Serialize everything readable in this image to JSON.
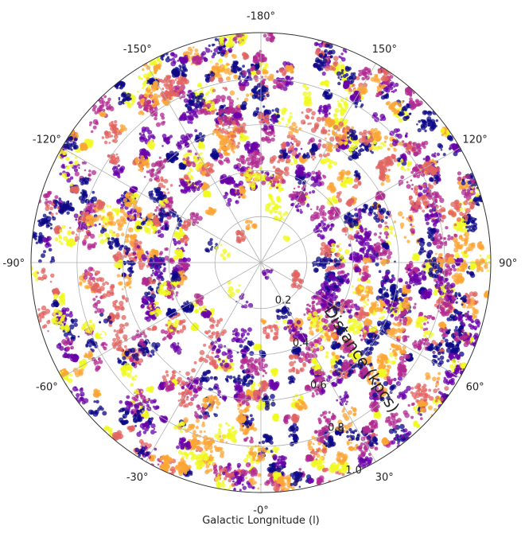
{
  "chart_data": {
    "type": "scatter",
    "projection": "polar",
    "xlabel": "Galactic Longnitude (l)",
    "rlabel": "Distance (kpcs)",
    "theta_zero": "bottom",
    "theta_direction": "counterclockwise",
    "theta_ticks": [
      "-0°",
      "30°",
      "60°",
      "90°",
      "120°",
      "150°",
      "-180°",
      "-150°",
      "-120°",
      "-90°",
      "-60°",
      "-30°"
    ],
    "theta_tick_values": [
      0,
      30,
      60,
      90,
      120,
      150,
      180,
      -150,
      -120,
      -90,
      -60,
      -30
    ],
    "r_ticks": [
      "0.2",
      "0.4",
      "0.6",
      "0.8",
      "1.0"
    ],
    "r_tick_values": [
      0.2,
      0.4,
      0.6,
      0.8,
      1.0
    ],
    "rlim": [
      0,
      1.0
    ],
    "grid": true,
    "colormap": "plasma",
    "colormap_stops": [
      "#0d0887",
      "#6a00a8",
      "#b12a90",
      "#e16462",
      "#fca636",
      "#f0f921"
    ],
    "inner_sparse_radius": 0.3,
    "point_density": "very high, clumpy clusters; sparse within ~0.3 kpc of center"
  }
}
